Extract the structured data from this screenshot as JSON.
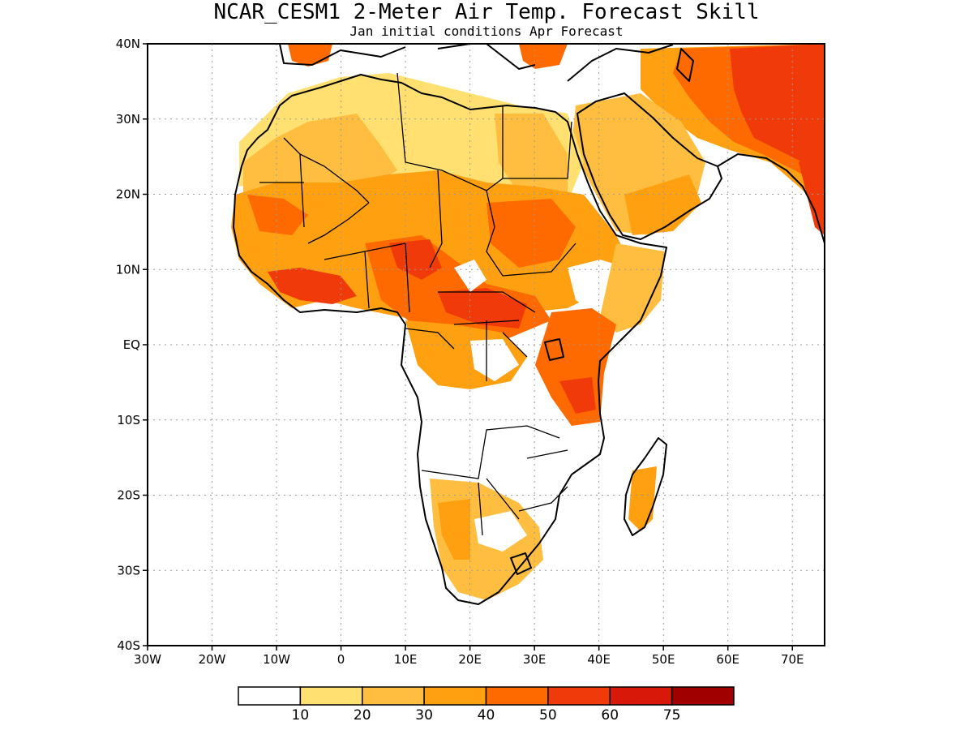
{
  "title": "NCAR_CESM1 2-Meter Air Temp. Forecast Skill",
  "subtitle": "Jan initial conditions  Apr Forecast",
  "map": {
    "projection": "lat-lon",
    "lon_range": [
      -30,
      75
    ],
    "lat_range": [
      -40,
      40
    ],
    "x_ticks": [
      {
        "value": -30,
        "label": "30W"
      },
      {
        "value": -20,
        "label": "20W"
      },
      {
        "value": -10,
        "label": "10W"
      },
      {
        "value": 0,
        "label": "0"
      },
      {
        "value": 10,
        "label": "10E"
      },
      {
        "value": 20,
        "label": "20E"
      },
      {
        "value": 30,
        "label": "30E"
      },
      {
        "value": 40,
        "label": "40E"
      },
      {
        "value": 50,
        "label": "50E"
      },
      {
        "value": 60,
        "label": "60E"
      },
      {
        "value": 70,
        "label": "70E"
      }
    ],
    "y_ticks": [
      {
        "value": 40,
        "label": "40N"
      },
      {
        "value": 30,
        "label": "30N"
      },
      {
        "value": 20,
        "label": "20N"
      },
      {
        "value": 10,
        "label": "10N"
      },
      {
        "value": 0,
        "label": "EQ"
      },
      {
        "value": -10,
        "label": "10S"
      },
      {
        "value": -20,
        "label": "20S"
      },
      {
        "value": -30,
        "label": "30S"
      },
      {
        "value": -40,
        "label": "40S"
      }
    ],
    "grid": "dotted"
  },
  "colorbar": {
    "levels": [
      "10",
      "20",
      "30",
      "40",
      "50",
      "60",
      "75"
    ],
    "colors": [
      "#ffffff",
      "#ffe070",
      "#ffbe40",
      "#ffa010",
      "#ff6a00",
      "#f03a0a",
      "#d81808",
      "#a00000"
    ]
  },
  "colors": {
    "land_outline": "#000000",
    "grid": "#9a9a9a"
  }
}
